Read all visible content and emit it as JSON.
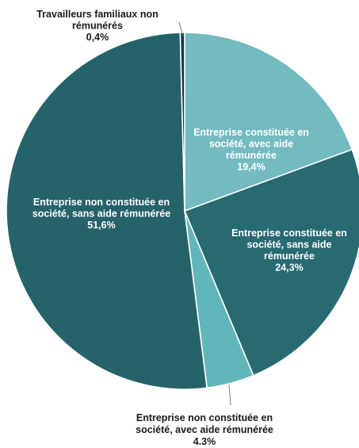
{
  "chart_data": {
    "type": "pie",
    "slices": [
      {
        "label": [
          "Entreprise constituée en",
          "société, avec aide",
          "rémunérée"
        ],
        "value_label": "19,4%",
        "value": 19.4,
        "color": "#73BBC0",
        "text_color": "#FFFFFF"
      },
      {
        "label": [
          "Entreprise constituée en",
          "société, sans aide",
          "rémunérée"
        ],
        "value_label": "24,3%",
        "value": 24.3,
        "color": "#276A72",
        "text_color": "#FFFFFF"
      },
      {
        "label": [
          "Entreprise non constituée en",
          "société, avec aide rémunérée"
        ],
        "value_label": "4.3%",
        "value": 4.3,
        "color": "#62B6BA",
        "text_color": "#1A1A1A"
      },
      {
        "label": [
          "Entreprise non constituée en",
          "société, sans aide rémunérée"
        ],
        "value_label": "51,6%",
        "value": 51.6,
        "color": "#25626A",
        "text_color": "#FFFFFF"
      },
      {
        "label": [
          "Travailleurs familiaux non",
          "rémunérés"
        ],
        "value_label": "0,4%",
        "value": 0.4,
        "color": "#0F3B45",
        "text_color": "#1A1A1A"
      }
    ]
  }
}
